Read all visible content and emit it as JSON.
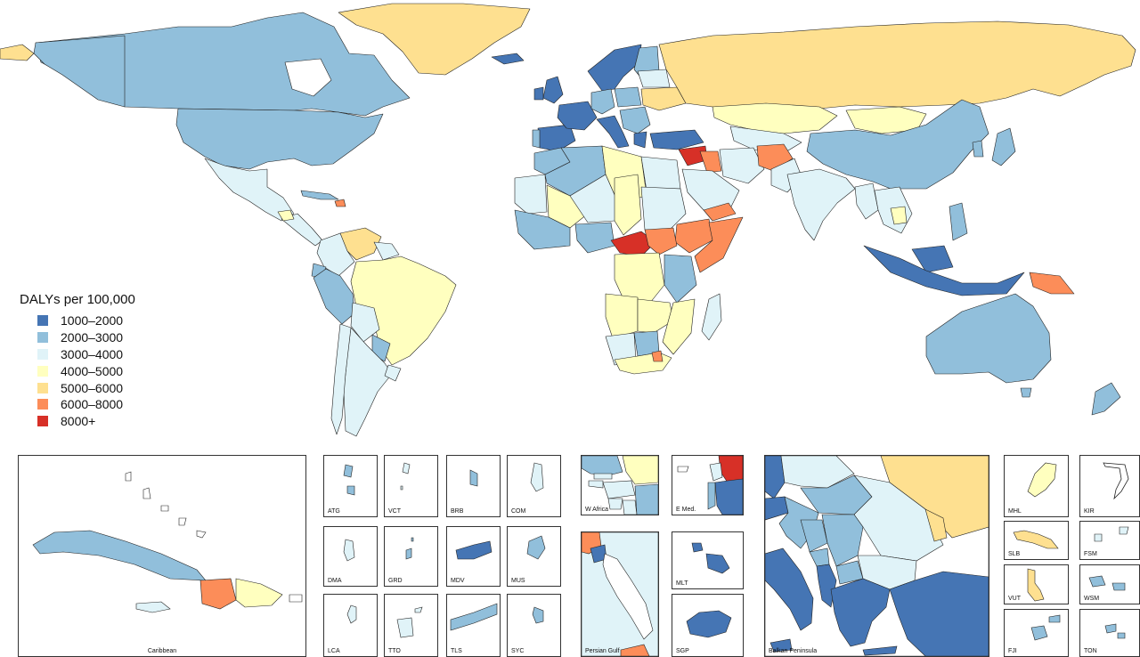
{
  "legend": {
    "title": "DALYs per 100,000",
    "items": [
      {
        "label": "1000–2000",
        "color": "#4575b4"
      },
      {
        "label": "2000–3000",
        "color": "#91bfdb"
      },
      {
        "label": "3000–4000",
        "color": "#e0f3f8"
      },
      {
        "label": "4000–5000",
        "color": "#ffffbf"
      },
      {
        "label": "5000–6000",
        "color": "#fee090"
      },
      {
        "label": "6000–8000",
        "color": "#fc8d59"
      },
      {
        "label": "8000+",
        "color": "#d73027"
      }
    ]
  },
  "insets": {
    "caribbean": "Caribbean",
    "atg": "ATG",
    "vct": "VCT",
    "brb": "BRB",
    "com": "COM",
    "dma": "DMA",
    "grd": "GRD",
    "mdv": "MDV",
    "mus": "MUS",
    "lca": "LCA",
    "tto": "TTO",
    "tls": "TLS",
    "syc": "SYC",
    "w_africa": "W Africa",
    "e_med": "E Med.",
    "persian_gulf": "Persian Gulf",
    "mlt": "MLT",
    "sgp": "SGP",
    "balkan": "Balkan Peninsula",
    "mhl": "MHL",
    "kir": "KIR",
    "slb": "SLB",
    "fsm": "FSM",
    "vut": "VUT",
    "wsm": "WSM",
    "fji": "FJI",
    "ton": "TON"
  }
}
